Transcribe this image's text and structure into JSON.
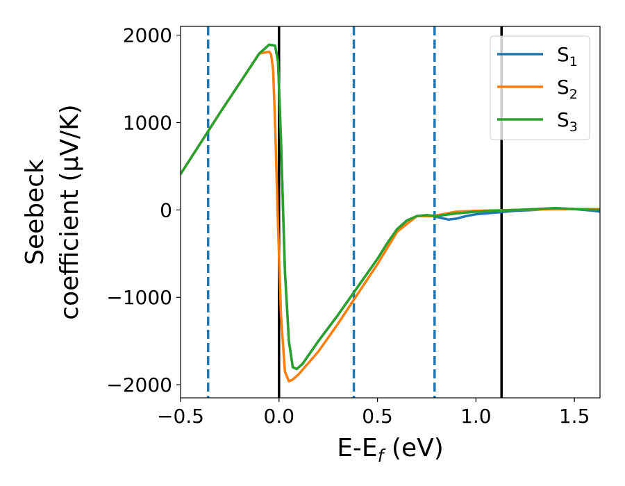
{
  "chart_data": {
    "type": "line",
    "xlabel": {
      "main": "E-E",
      "sub": "f",
      "rest": " (eV)"
    },
    "ylabel": {
      "line1": "Seebeck",
      "line2": "coefficient  (μV/K)"
    },
    "xlim": [
      -0.5,
      1.63
    ],
    "ylim": [
      -2150,
      2100
    ],
    "x_ticks": [
      -0.5,
      0.0,
      0.5,
      1.0,
      1.5
    ],
    "x_tick_labels": [
      "−0.5",
      "0.0",
      "0.5",
      "1.0",
      "1.5"
    ],
    "y_ticks": [
      -2000,
      -1000,
      0,
      1000,
      2000
    ],
    "y_tick_labels": [
      "−2000",
      "−1000",
      "0",
      "1000",
      "2000"
    ],
    "legend": {
      "placement": "top-right"
    },
    "series": [
      {
        "name": "S",
        "sub": "1",
        "color": "#1f77b4",
        "x": [
          -0.5,
          -0.4,
          -0.3,
          -0.2,
          -0.1,
          -0.05,
          -0.02,
          -0.005,
          0.01,
          0.03,
          0.05,
          0.07,
          0.09,
          0.12,
          0.2,
          0.3,
          0.4,
          0.5,
          0.55,
          0.6,
          0.65,
          0.7,
          0.75,
          0.78,
          0.82,
          0.86,
          0.9,
          0.95,
          1.0,
          1.1,
          1.2,
          1.3,
          1.4,
          1.5,
          1.6,
          1.63
        ],
        "y": [
          410,
          760,
          1110,
          1450,
          1790,
          1890,
          1880,
          1700,
          800,
          -700,
          -1500,
          -1800,
          -1820,
          -1760,
          -1500,
          -1200,
          -880,
          -560,
          -380,
          -220,
          -120,
          -70,
          -60,
          -70,
          -90,
          -110,
          -100,
          -70,
          -50,
          -30,
          -10,
          0,
          20,
          10,
          -10,
          -20
        ]
      },
      {
        "name": "S",
        "sub": "2",
        "color": "#ff7f0e",
        "x": [
          -0.5,
          -0.4,
          -0.3,
          -0.2,
          -0.1,
          -0.05,
          -0.04,
          -0.03,
          -0.02,
          -0.005,
          0.01,
          0.03,
          0.05,
          0.07,
          0.1,
          0.2,
          0.3,
          0.4,
          0.5,
          0.6,
          0.7,
          0.78,
          0.9,
          1.0,
          1.2,
          1.4,
          1.6,
          1.63
        ],
        "y": [
          410,
          760,
          1110,
          1450,
          1790,
          1810,
          1780,
          1600,
          1000,
          -200,
          -1200,
          -1850,
          -1960,
          -1940,
          -1880,
          -1620,
          -1300,
          -960,
          -620,
          -250,
          -70,
          -70,
          -20,
          -10,
          0,
          10,
          10,
          10
        ]
      },
      {
        "name": "S",
        "sub": "3",
        "color": "#2ca02c",
        "x": [
          -0.5,
          -0.4,
          -0.3,
          -0.2,
          -0.1,
          -0.05,
          -0.02,
          -0.005,
          0.01,
          0.03,
          0.05,
          0.07,
          0.09,
          0.12,
          0.2,
          0.3,
          0.4,
          0.5,
          0.55,
          0.6,
          0.65,
          0.7,
          0.75,
          0.8,
          0.9,
          1.0,
          1.1,
          1.2,
          1.3,
          1.4,
          1.5,
          1.6,
          1.63
        ],
        "y": [
          410,
          760,
          1110,
          1450,
          1790,
          1890,
          1880,
          1700,
          800,
          -700,
          -1500,
          -1800,
          -1820,
          -1760,
          -1500,
          -1200,
          -880,
          -560,
          -380,
          -220,
          -120,
          -70,
          -60,
          -70,
          -40,
          -20,
          -10,
          0,
          10,
          20,
          10,
          0,
          0
        ]
      }
    ],
    "vlines": [
      {
        "x": -0.36,
        "style": "dashed",
        "color": "#1f77b4"
      },
      {
        "x": 0.0,
        "style": "solid",
        "color": "#000000"
      },
      {
        "x": 0.38,
        "style": "dashed",
        "color": "#1f77b4"
      },
      {
        "x": 0.79,
        "style": "dashed",
        "color": "#1f77b4"
      },
      {
        "x": 1.13,
        "style": "solid",
        "color": "#000000"
      }
    ]
  }
}
